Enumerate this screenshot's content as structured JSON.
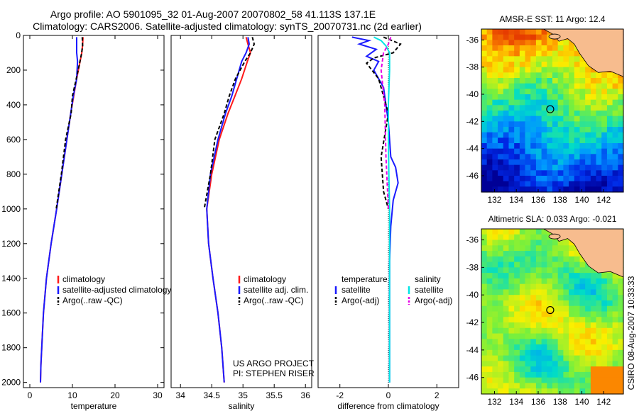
{
  "title_line1": "Argo profile: AO 5901095_32 01-Aug-2007 20070802_58 41.113S 137.1E",
  "title_line2": "Climatology: CARS2006. Satellite-adjusted climatology: synTS_20070731.nc (2d earlier)",
  "side_label": "CSIRO 08-Aug-2007 10:33:33",
  "footer_line1": "US ARGO PROJECT",
  "footer_line2": "PI: STEPHEN RISER",
  "colors": {
    "climatology": "#ff1a1a",
    "satellite": "#1a1aff",
    "argo": "#000000",
    "sat_sal": "#00e5e5",
    "argo_sal": "#e600e6"
  },
  "chart_data": [
    {
      "type": "line",
      "id": "temperature",
      "xlabel": "temperature",
      "ylabel": "",
      "xlim": [
        -1.5,
        31.5
      ],
      "ylim": [
        2030,
        0
      ],
      "xticks": [
        0,
        10,
        20,
        30
      ],
      "yticks": [
        0,
        200,
        400,
        600,
        800,
        1000,
        1200,
        1400,
        1600,
        1800,
        2000
      ],
      "legend": [
        "climatology",
        "satellite-adjusted climatology",
        "Argo(..raw -QC)"
      ],
      "series": [
        {
          "name": "climatology",
          "color": "climatology",
          "dash": "",
          "x": [
            12.5,
            12.4,
            12.2,
            11.8,
            11.0,
            10.3,
            9.6,
            8.7,
            7.5,
            6.3,
            5.0,
            3.9,
            3.2,
            2.8,
            2.6,
            2.5
          ],
          "y": [
            10,
            50,
            100,
            150,
            250,
            350,
            450,
            600,
            800,
            1000,
            1200,
            1400,
            1600,
            1800,
            1900,
            2000
          ]
        },
        {
          "name": "satellite-adjusted climatology",
          "color": "satellite",
          "dash": "",
          "x": [
            11.0,
            11.0,
            11.0,
            11.2,
            11.0,
            10.2,
            9.6,
            8.7,
            7.5,
            6.3,
            5.0,
            3.9,
            3.2,
            2.8,
            2.6,
            2.5
          ],
          "y": [
            10,
            50,
            100,
            150,
            250,
            350,
            450,
            600,
            800,
            1000,
            1200,
            1400,
            1600,
            1800,
            1900,
            2000
          ]
        },
        {
          "name": "Argo(..raw -QC)",
          "color": "argo",
          "dash": "5,3",
          "x": [
            12.3,
            12.4,
            12.1,
            11.6,
            10.9,
            10.0,
            9.7,
            8.4,
            7.4,
            6.2
          ],
          "y": [
            10,
            60,
            110,
            170,
            250,
            350,
            450,
            600,
            800,
            1000
          ]
        }
      ]
    },
    {
      "type": "line",
      "id": "salinity",
      "xlabel": "salinity",
      "ylabel": "",
      "xlim": [
        33.85,
        36.1
      ],
      "ylim": [
        2030,
        0
      ],
      "xticks": [
        34,
        34.5,
        35,
        35.5,
        36
      ],
      "yticks": [],
      "legend": [
        "climatology",
        "satellite adj. clim.",
        "Argo(..raw -QC)"
      ],
      "series": [
        {
          "name": "climatology",
          "color": "climatology",
          "dash": "",
          "x": [
            35.05,
            35.08,
            35.12,
            35.07,
            34.98,
            34.87,
            34.76,
            34.62,
            34.5,
            34.42,
            34.45,
            34.52,
            34.6,
            34.66,
            34.7
          ],
          "y": [
            10,
            50,
            100,
            150,
            250,
            350,
            450,
            600,
            800,
            1000,
            1200,
            1400,
            1600,
            1800,
            2000
          ]
        },
        {
          "name": "satellite adj. clim.",
          "color": "satellite",
          "dash": "",
          "x": [
            35.08,
            35.1,
            35.05,
            34.98,
            34.9,
            34.82,
            34.72,
            34.6,
            34.48,
            34.42,
            34.45,
            34.52,
            34.6,
            34.66,
            34.7
          ],
          "y": [
            10,
            50,
            100,
            150,
            250,
            350,
            450,
            600,
            800,
            1000,
            1200,
            1400,
            1600,
            1800,
            2000
          ]
        },
        {
          "name": "Argo(..raw -QC)",
          "color": "argo",
          "dash": "5,3",
          "x": [
            35.15,
            35.18,
            35.12,
            35.03,
            34.88,
            34.78,
            34.7,
            34.55,
            34.48,
            34.38
          ],
          "y": [
            10,
            50,
            100,
            150,
            250,
            350,
            450,
            600,
            800,
            1000
          ]
        }
      ]
    },
    {
      "type": "line",
      "id": "difference",
      "xlabel": "difference from climatology",
      "ylabel": "",
      "xlim": [
        -2.9,
        2.9
      ],
      "ylim": [
        2030,
        0
      ],
      "xticks": [
        -2,
        0,
        2
      ],
      "yticks": [],
      "legend_headers": [
        "temperature",
        "salinity"
      ],
      "legend": [
        "satellite",
        "Argo(-adj)",
        "satellite",
        "Argo(-adj)"
      ],
      "series": [
        {
          "name": "satellite",
          "color": "satellite",
          "dash": "",
          "x": [
            -1.5,
            -0.8,
            -1.2,
            -0.5,
            -0.9,
            -0.4,
            -0.6,
            -0.2,
            0,
            0.1,
            0.3,
            0.4,
            0.2,
            0.1,
            0.05,
            0.05,
            0.05,
            0.05
          ],
          "y": [
            10,
            30,
            50,
            80,
            120,
            150,
            200,
            300,
            500,
            700,
            760,
            850,
            950,
            1100,
            1300,
            1500,
            1800,
            2000
          ]
        },
        {
          "name": "Argo(-adj)",
          "color": "argo",
          "dash": "5,3",
          "x": [
            -0.2,
            0.5,
            0.2,
            -0.6,
            -0.9,
            -0.4,
            -0.2,
            0,
            -0.3,
            -0.2,
            0
          ],
          "y": [
            10,
            50,
            100,
            130,
            160,
            250,
            350,
            450,
            700,
            900,
            1000
          ]
        },
        {
          "name": "satellite",
          "color": "sat_sal",
          "dash": "",
          "x": [
            -0.6,
            -0.3,
            -0.1,
            0.05,
            0.05,
            0.0,
            0.0,
            0.02,
            0.05,
            0.05,
            0.05,
            0.05
          ],
          "y": [
            10,
            30,
            60,
            100,
            200,
            400,
            600,
            800,
            1000,
            1400,
            1800,
            2000
          ]
        },
        {
          "name": "Argo(-adj)",
          "color": "argo_sal",
          "dash": "5,3",
          "x": [
            0.1,
            0.0,
            -0.2,
            -0.3,
            -0.15,
            -0.1,
            0
          ],
          "y": [
            10,
            50,
            100,
            200,
            400,
            700,
            1000
          ]
        }
      ]
    }
  ],
  "maps": [
    {
      "title": "AMSR-E SST: 11 Argo: 12.4",
      "xticks": [
        132,
        134,
        136,
        138,
        140,
        142
      ],
      "yticks": [
        -36,
        -38,
        -40,
        -42,
        -44,
        -46
      ],
      "marker": {
        "lon": 137.1,
        "lat": -41.1
      }
    },
    {
      "title": "Altimetric SLA: 0.033 Argo: -0.021",
      "xticks": [
        132,
        134,
        136,
        138,
        140,
        142
      ],
      "yticks": [
        -36,
        -38,
        -40,
        -42,
        -44,
        -46
      ],
      "marker": {
        "lon": 137.1,
        "lat": -41.1
      }
    }
  ]
}
